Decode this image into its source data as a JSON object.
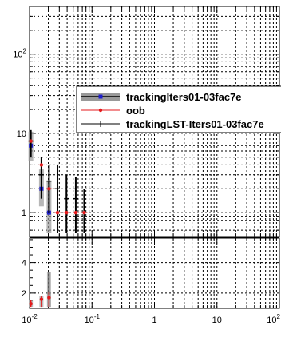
{
  "chart_data": {
    "type": "scatter",
    "x_scale": "log",
    "xlim": [
      0.01,
      100
    ],
    "x_ticks": [
      {
        "value": 0.01,
        "label": "10",
        "sup": "-2"
      },
      {
        "value": 0.1,
        "label": "10",
        "sup": "-1"
      },
      {
        "value": 1,
        "label": "1",
        "sup": ""
      },
      {
        "value": 10,
        "label": "10",
        "sup": ""
      },
      {
        "value": 100,
        "label": "10",
        "sup": "2"
      }
    ],
    "grid": true,
    "legend_position": "center-right",
    "panels": [
      {
        "name": "top",
        "y_scale": "log",
        "ylim": [
          0.5,
          400
        ],
        "y_ticks": [
          {
            "value": 1,
            "label": "1",
            "sup": ""
          },
          {
            "value": 10,
            "label": "10",
            "sup": ""
          },
          {
            "value": 100,
            "label": "10",
            "sup": "2"
          }
        ]
      },
      {
        "name": "bottom",
        "y_scale": "linear",
        "ylim": [
          1,
          5.6
        ],
        "y_ticks": [
          {
            "value": 2,
            "label": "2",
            "sup": ""
          },
          {
            "value": 4,
            "label": "4",
            "sup": ""
          }
        ]
      }
    ],
    "series": [
      {
        "name": "trackingIters01-03fac7e",
        "color": "#1f1fcc",
        "style": "band",
        "points": [
          {
            "x": 0.0105,
            "y": 7,
            "ylo": 4.5,
            "yhi": 10.5
          },
          {
            "x": 0.0155,
            "y": 2,
            "ylo": 1.2,
            "yhi": 3.5
          },
          {
            "x": 0.0205,
            "y": 1,
            "ylo": 0.55,
            "yhi": 2.5
          }
        ]
      },
      {
        "name": "oob",
        "color": "#e41a1c",
        "style": "marker",
        "points": [
          {
            "x": 0.0105,
            "y": 8
          },
          {
            "x": 0.0155,
            "y": 4
          },
          {
            "x": 0.0205,
            "y": 2
          },
          {
            "x": 0.028,
            "y": 1
          },
          {
            "x": 0.039,
            "y": 1
          },
          {
            "x": 0.055,
            "y": 1
          },
          {
            "x": 0.075,
            "y": 1
          }
        ]
      },
      {
        "name": "trackingLST-Iters01-03fac7e",
        "color": "#000000",
        "style": "errorbar",
        "points": [
          {
            "x": 0.0105,
            "y": 8,
            "ylo": 5,
            "yhi": 11
          },
          {
            "x": 0.0155,
            "y": 3,
            "ylo": 1.5,
            "yhi": 5
          },
          {
            "x": 0.0205,
            "y": 2.5,
            "ylo": 1,
            "yhi": 4
          },
          {
            "x": 0.028,
            "y": 2,
            "ylo": 0.55,
            "yhi": 4
          },
          {
            "x": 0.039,
            "y": 1.5,
            "ylo": 0.55,
            "yhi": 3
          },
          {
            "x": 0.055,
            "y": 1.5,
            "ylo": 0.55,
            "yhi": 2.8
          },
          {
            "x": 0.075,
            "y": 1,
            "ylo": 0.55,
            "yhi": 2
          }
        ]
      }
    ],
    "ratio": {
      "points": [
        {
          "x": 0.0105,
          "y": 1.3,
          "ylo": 1.1,
          "yhi": 1.55,
          "color": "#e41a1c"
        },
        {
          "x": 0.0155,
          "y": 1.6,
          "ylo": 1.1,
          "yhi": 1.8,
          "color": "#e41a1c"
        },
        {
          "x": 0.0205,
          "y": 2,
          "ylo": 1.1,
          "yhi": 3.4,
          "color": "#000000"
        },
        {
          "x": 0.0205,
          "y": 1.7,
          "ylo": 1.1,
          "yhi": 2.1,
          "color": "#e41a1c"
        }
      ]
    }
  }
}
